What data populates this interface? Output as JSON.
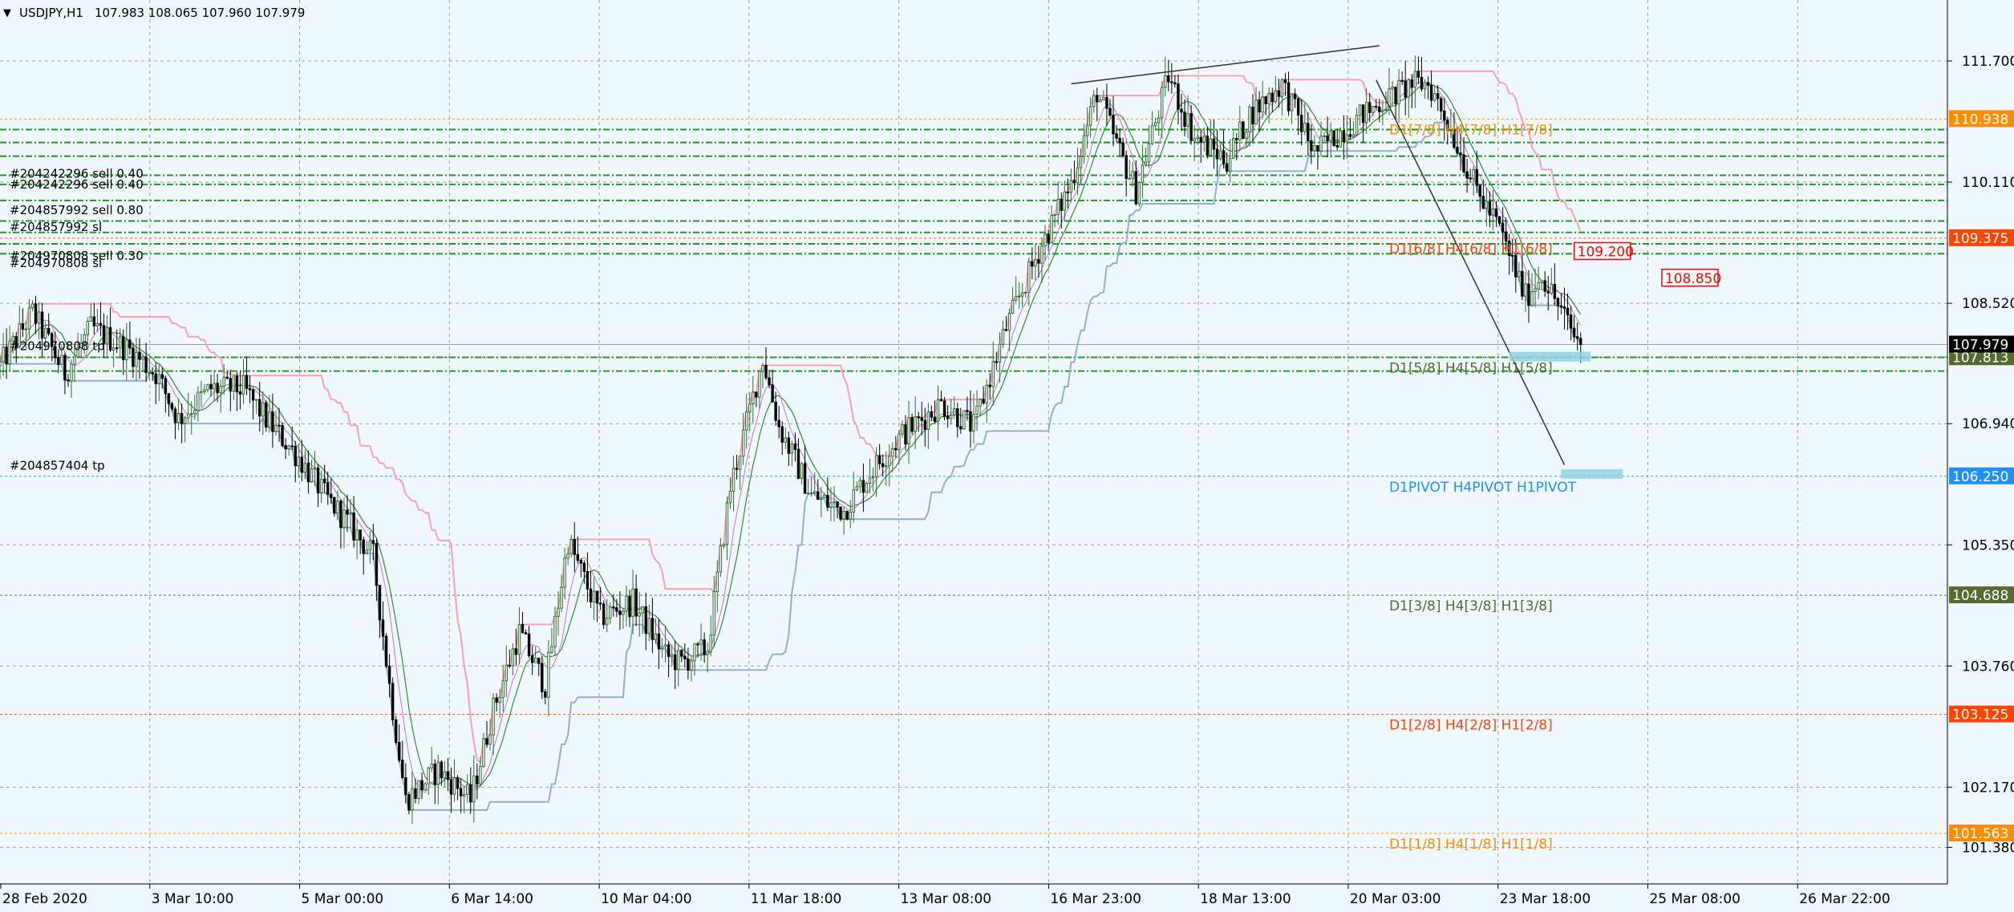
{
  "header": {
    "symbol_timeframe": "USDJPY,H1",
    "ohlc": "107.983 108.065 107.960 107.979",
    "menu_glyph": "▼"
  },
  "colors": {
    "background": "#f0f8ff",
    "grid": "#5a5a5a",
    "bull": "#2f6e2f",
    "bear": "#000000",
    "ma_pink": "#ff9fb0",
    "ma_green": "#2f8f2f",
    "ma_blue": "#8fb0d0",
    "tp_line": "#1a9a1a",
    "orange": "#ff8c00",
    "red": "#ff4500",
    "olive": "#556b2f",
    "pivot_blue": "#1e90ff",
    "sl_box": "#ff0000",
    "target_box": "#8fd3e0"
  },
  "chart_data": {
    "type": "candlestick",
    "ylim": [
      100.9,
      112.5
    ],
    "y_ticks": [
      "111.700",
      "110.110",
      "108.520",
      "106.940",
      "105.350",
      "103.760",
      "102.170",
      "101.380"
    ],
    "x_ticks": [
      "28 Feb 2020",
      "3 Mar 10:00",
      "5 Mar 00:00",
      "6 Mar 14:00",
      "10 Mar 04:00",
      "11 Mar 18:00",
      "13 Mar 08:00",
      "16 Mar 23:00",
      "18 Mar 13:00",
      "20 Mar 03:00",
      "23 Mar 18:00",
      "25 Mar 08:00",
      "26 Mar 22:00"
    ],
    "x_range": [
      0,
      600
    ],
    "last_price": 107.979,
    "key_path": [
      [
        0,
        107.7
      ],
      [
        10,
        108.4
      ],
      [
        20,
        107.6
      ],
      [
        28,
        108.2
      ],
      [
        40,
        107.9
      ],
      [
        48,
        107.6
      ],
      [
        55,
        107.0
      ],
      [
        65,
        107.4
      ],
      [
        75,
        107.4
      ],
      [
        82,
        107.0
      ],
      [
        92,
        106.5
      ],
      [
        100,
        106.0
      ],
      [
        108,
        105.6
      ],
      [
        115,
        105.2
      ],
      [
        120,
        103.5
      ],
      [
        125,
        102.0
      ],
      [
        135,
        102.4
      ],
      [
        145,
        102.0
      ],
      [
        152,
        103.2
      ],
      [
        160,
        104.2
      ],
      [
        168,
        103.5
      ],
      [
        175,
        105.4
      ],
      [
        185,
        104.4
      ],
      [
        195,
        104.6
      ],
      [
        205,
        103.9
      ],
      [
        210,
        103.8
      ],
      [
        218,
        104.0
      ],
      [
        225,
        106.1
      ],
      [
        235,
        107.8
      ],
      [
        240,
        106.9
      ],
      [
        250,
        106.0
      ],
      [
        260,
        105.8
      ],
      [
        268,
        106.3
      ],
      [
        278,
        106.8
      ],
      [
        290,
        107.2
      ],
      [
        300,
        106.9
      ],
      [
        310,
        108.2
      ],
      [
        320,
        109.2
      ],
      [
        330,
        110.1
      ],
      [
        338,
        111.3
      ],
      [
        345,
        110.5
      ],
      [
        350,
        110.0
      ],
      [
        360,
        111.5
      ],
      [
        368,
        110.7
      ],
      [
        378,
        110.4
      ],
      [
        385,
        111.0
      ],
      [
        395,
        111.4
      ],
      [
        405,
        110.5
      ],
      [
        420,
        111.0
      ],
      [
        435,
        111.4
      ],
      [
        440,
        111.4
      ],
      [
        445,
        111.0
      ],
      [
        455,
        110.0
      ],
      [
        462,
        109.5
      ],
      [
        470,
        108.6
      ],
      [
        475,
        108.9
      ],
      [
        480,
        108.5
      ],
      [
        485,
        108.1
      ],
      [
        487,
        107.98
      ]
    ],
    "tp_lines": [
      110.8,
      110.63,
      110.45,
      110.2,
      110.08,
      109.87,
      109.6,
      109.45,
      109.3,
      109.17,
      107.81,
      107.63
    ],
    "murrey_levels": [
      {
        "price": 110.938,
        "label": "D1[7/8] H4[7/8] H1[7/8]",
        "tag": "110.938",
        "color": "orange"
      },
      {
        "price": 109.375,
        "label": "D1[6/8] H4[6/8] H1[6/8]",
        "tag": "109.375",
        "color": "red"
      },
      {
        "price": 107.813,
        "label": "D1[5/8] H4[5/8] H1[5/8]",
        "tag": "107.813",
        "color": "olive"
      },
      {
        "price": 106.25,
        "label": "D1PIVOT H4PIVOT H1PIVOT",
        "tag": "106.250",
        "color": "pivot_blue"
      },
      {
        "price": 104.688,
        "label": "D1[3/8] H4[3/8] H1[3/8]",
        "tag": "104.688",
        "color": "olive"
      },
      {
        "price": 103.125,
        "label": "D1[2/8] H4[2/8] H1[2/8]",
        "tag": "103.125",
        "color": "red"
      },
      {
        "price": 101.563,
        "label": "D1[1/8] H4[1/8] H1[1/8]",
        "tag": "101.563",
        "color": "orange"
      }
    ],
    "sl_boxes": [
      {
        "price": 109.2,
        "label": "109.200",
        "x": 485
      },
      {
        "price": 108.85,
        "label": "108.850",
        "x": 512
      }
    ],
    "target_boxes": [
      {
        "price": 107.82,
        "x0": 465,
        "x1": 490
      },
      {
        "price": 106.28,
        "x0": 481,
        "x1": 500
      }
    ],
    "trendlines": [
      {
        "x0": 330,
        "y0": 111.4,
        "x1": 425,
        "y1": 111.9
      },
      {
        "x0": 424,
        "y0": 111.45,
        "x1": 482,
        "y1": 106.4
      }
    ],
    "order_labels": [
      {
        "text": "#204242296 sell 0.40",
        "price": 110.22
      },
      {
        "text": "#204242296 sell 0.40",
        "price": 110.08
      },
      {
        "text": "#204857992 sell 0.80",
        "price": 109.74
      },
      {
        "text": "#204857992 sl",
        "price": 109.52
      },
      {
        "text": "#204970808 sell 0.30",
        "price": 109.14
      },
      {
        "text": "#204970808 sl",
        "price": 109.05
      },
      {
        "text": "#204970808 tp",
        "price": 107.96
      },
      {
        "text": "#204857404 tp",
        "price": 106.39
      }
    ]
  }
}
